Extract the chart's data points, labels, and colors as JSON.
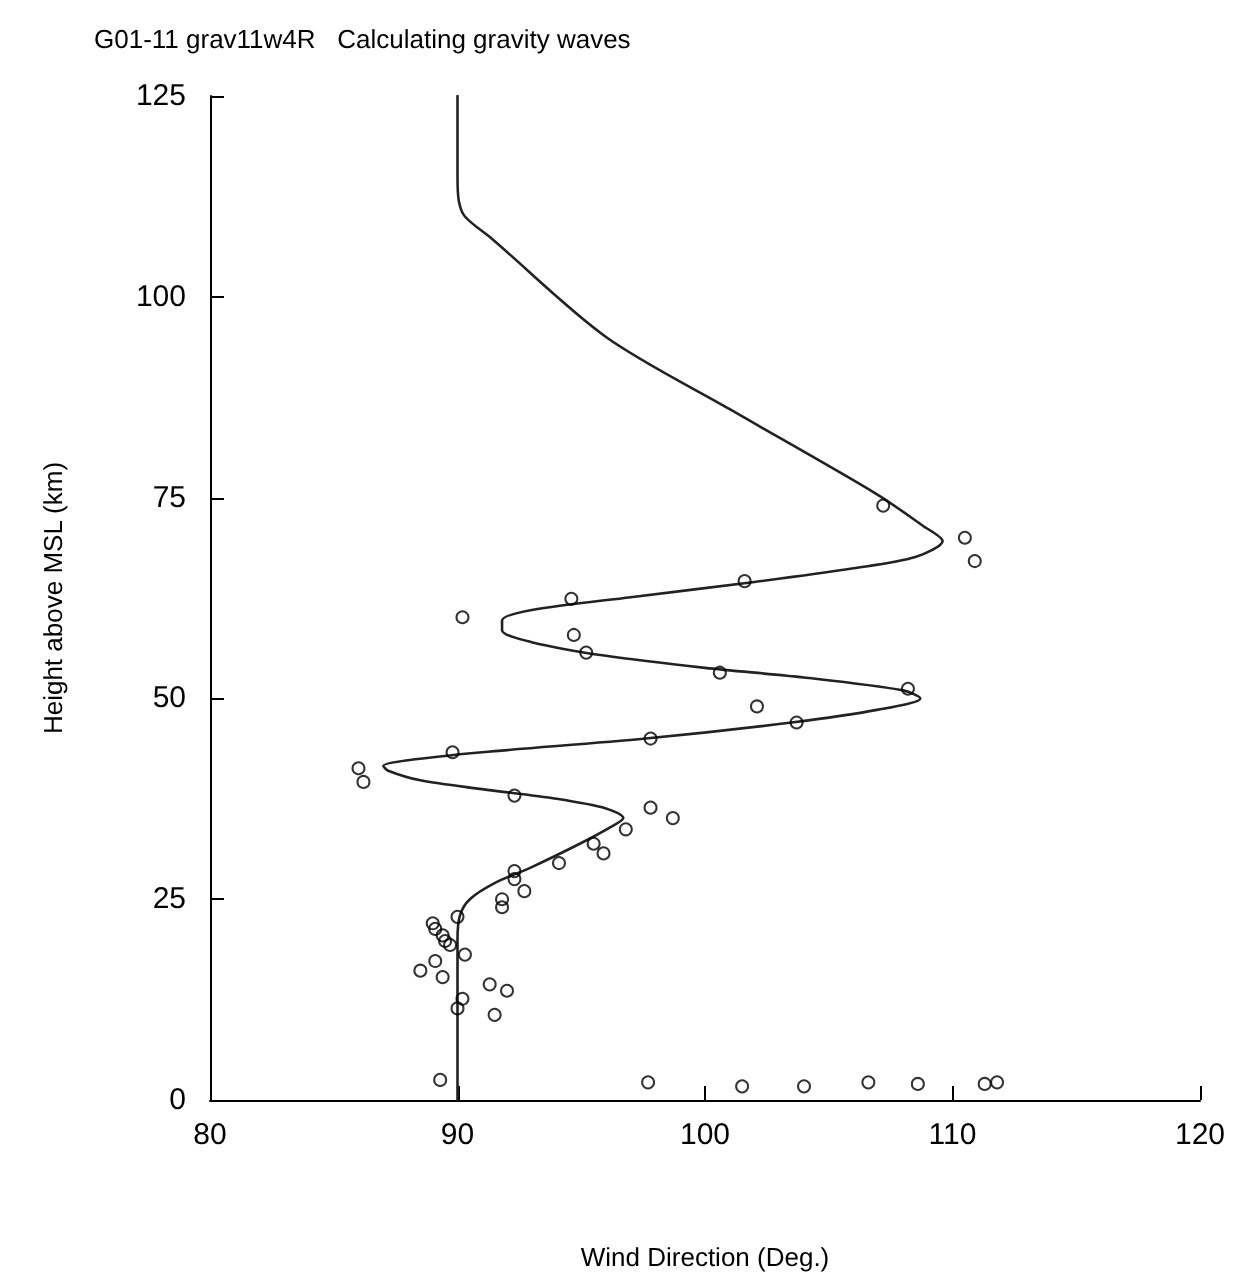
{
  "chart_data": {
    "type": "scatter",
    "title": "G01-11 grav11w4R   Calculating gravity waves",
    "xlabel": "Wind Direction (Deg.)",
    "ylabel": "Height above MSL (km)",
    "xlim": [
      80,
      120
    ],
    "xticks": [
      80,
      90,
      100,
      110,
      120
    ],
    "ylim": [
      0,
      125
    ],
    "yticks": [
      0,
      25,
      50,
      75,
      100,
      125
    ],
    "grid": false,
    "series": [
      {
        "marker": "circle",
        "color": "#000000",
        "x": [
          107.2,
          110.5,
          110.9,
          94.6,
          101.6,
          90.2,
          94.7,
          95.2,
          100.6,
          108.2,
          102.1,
          103.7,
          97.8,
          89.8,
          86.0,
          86.2,
          92.3,
          97.8,
          98.7,
          96.8,
          95.5,
          95.9,
          94.1,
          92.3,
          92.3,
          92.7,
          91.8,
          91.8,
          90.0,
          89.0,
          89.1,
          89.4,
          89.5,
          89.7,
          90.3,
          89.1,
          88.5,
          89.4,
          91.3,
          92.0,
          90.2,
          90.0,
          91.5,
          89.3,
          97.7,
          101.5,
          104.0,
          106.6,
          108.6,
          111.3,
          111.8
        ],
        "values": [
          74.0,
          70.0,
          67.1,
          62.4,
          64.6,
          60.1,
          57.9,
          55.7,
          53.2,
          51.2,
          49.0,
          47.0,
          45.0,
          43.3,
          41.3,
          39.6,
          37.9,
          36.4,
          35.1,
          33.7,
          31.9,
          30.7,
          29.5,
          28.5,
          27.5,
          26.0,
          25.0,
          24.0,
          22.8,
          22.0,
          21.3,
          20.5,
          19.8,
          19.3,
          18.1,
          17.3,
          16.1,
          15.3,
          14.4,
          13.6,
          12.6,
          11.4,
          10.6,
          2.5,
          2.2,
          1.7,
          1.7,
          2.2,
          2.0,
          2.0,
          2.2
        ]
      },
      {
        "type": "line",
        "marker": "none",
        "line_style": "solid",
        "color": "#222222",
        "x": [
          90,
          90,
          90.1,
          90.5,
          91.5,
          93,
          95,
          96.2,
          96.7,
          96,
          94,
          91,
          88.5,
          87.2,
          87,
          88,
          91,
          97.6,
          103.5,
          107,
          108.7,
          108,
          104,
          100,
          96,
          93,
          91.8,
          91.8,
          93,
          97,
          102,
          106,
          108.5,
          109.6,
          108.8,
          106.9,
          101,
          96,
          91.4,
          90.3,
          90.05,
          90,
          90
        ],
        "values": [
          0,
          20,
          23,
          25,
          27,
          29,
          32,
          34,
          35.1,
          36.3,
          37.5,
          38.7,
          39.8,
          41,
          41.6,
          42.3,
          43.3,
          45,
          47,
          48.6,
          50,
          51,
          52.6,
          53.8,
          55.3,
          57,
          58.5,
          59.7,
          61,
          62.6,
          64.5,
          66.2,
          67.6,
          69.6,
          71.5,
          75.5,
          86,
          95,
          107.2,
          110,
          112,
          115,
          125
        ]
      }
    ]
  }
}
